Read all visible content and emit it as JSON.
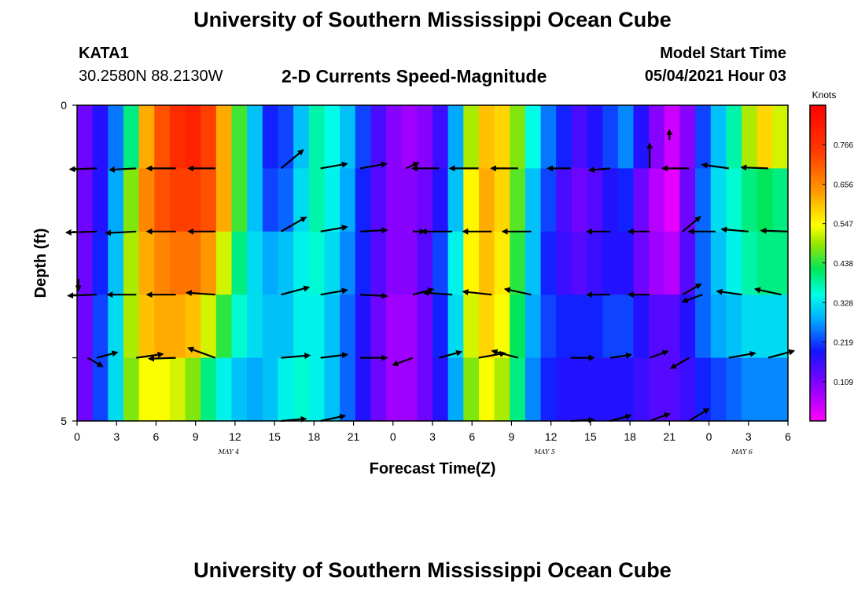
{
  "header": {
    "title_top": "University of Southern Mississippi Ocean Cube",
    "station": "KATA1",
    "coords": "30.2580N  88.2130W",
    "plot_title": "2-D Currents Speed-Magnitude",
    "model_label": "Model Start Time",
    "model_time": "05/04/2021 Hour 03",
    "title_bottom": "University of Southern Mississippi Ocean Cube"
  },
  "chart_data": {
    "type": "heatmap",
    "title": "2-D Currents Speed-Magnitude",
    "xlabel": "Forecast Time(Z)",
    "ylabel": "Depth (ft)",
    "ylim": [
      0,
      5
    ],
    "y_tick_labels": [
      "0",
      "5"
    ],
    "x_tick_labels": [
      "0",
      "3",
      "6",
      "9",
      "12",
      "15",
      "18",
      "21",
      "0",
      "3",
      "6",
      "9",
      "12",
      "15",
      "18",
      "21",
      "0",
      "3",
      "6"
    ],
    "date_labels": [
      {
        "label": "MAY 4",
        "hour": 12
      },
      {
        "label": "MAY 5",
        "hour": 36
      },
      {
        "label": "MAY 6",
        "hour": 51
      }
    ],
    "hours_range": [
      0,
      54
    ],
    "depth_bands": [
      0,
      1,
      2,
      3,
      4,
      5
    ],
    "speed_knots_by_band": [
      [
        0.12,
        0.18,
        0.25,
        0.4,
        0.62,
        0.72,
        0.78,
        0.8,
        0.74,
        0.62,
        0.45,
        0.3,
        0.2,
        0.22,
        0.3,
        0.38,
        0.35,
        0.3,
        0.22,
        0.15,
        0.1,
        0.08,
        0.1,
        0.16,
        0.28,
        0.5,
        0.6,
        0.58,
        0.48,
        0.35,
        0.25,
        0.2,
        0.15,
        0.18,
        0.22,
        0.26,
        0.18,
        0.1,
        0.04,
        0.1,
        0.22,
        0.3,
        0.38,
        0.5,
        0.58,
        0.52
      ],
      [
        0.12,
        0.18,
        0.28,
        0.48,
        0.66,
        0.72,
        0.74,
        0.74,
        0.72,
        0.62,
        0.45,
        0.3,
        0.22,
        0.24,
        0.32,
        0.38,
        0.34,
        0.28,
        0.2,
        0.14,
        0.1,
        0.1,
        0.12,
        0.18,
        0.3,
        0.55,
        0.62,
        0.58,
        0.46,
        0.3,
        0.22,
        0.15,
        0.12,
        0.14,
        0.18,
        0.2,
        0.12,
        0.06,
        0.02,
        0.12,
        0.24,
        0.32,
        0.36,
        0.4,
        0.42,
        0.4
      ],
      [
        0.12,
        0.2,
        0.3,
        0.5,
        0.62,
        0.66,
        0.68,
        0.68,
        0.64,
        0.52,
        0.4,
        0.32,
        0.28,
        0.3,
        0.34,
        0.36,
        0.32,
        0.26,
        0.2,
        0.14,
        0.1,
        0.1,
        0.14,
        0.22,
        0.34,
        0.55,
        0.6,
        0.56,
        0.44,
        0.3,
        0.2,
        0.16,
        0.14,
        0.16,
        0.18,
        0.18,
        0.12,
        0.08,
        0.06,
        0.14,
        0.24,
        0.3,
        0.34,
        0.38,
        0.4,
        0.4
      ],
      [
        0.12,
        0.22,
        0.32,
        0.5,
        0.6,
        0.62,
        0.62,
        0.6,
        0.52,
        0.44,
        0.36,
        0.32,
        0.3,
        0.3,
        0.34,
        0.34,
        0.3,
        0.24,
        0.18,
        0.12,
        0.08,
        0.08,
        0.12,
        0.2,
        0.32,
        0.52,
        0.58,
        0.54,
        0.42,
        0.28,
        0.22,
        0.2,
        0.2,
        0.2,
        0.22,
        0.22,
        0.18,
        0.14,
        0.14,
        0.18,
        0.24,
        0.28,
        0.3,
        0.32,
        0.32,
        0.32
      ],
      [
        0.12,
        0.22,
        0.32,
        0.48,
        0.54,
        0.54,
        0.52,
        0.48,
        0.4,
        0.34,
        0.3,
        0.28,
        0.3,
        0.34,
        0.36,
        0.34,
        0.3,
        0.24,
        0.18,
        0.12,
        0.08,
        0.08,
        0.12,
        0.18,
        0.28,
        0.48,
        0.54,
        0.5,
        0.4,
        0.26,
        0.2,
        0.18,
        0.18,
        0.18,
        0.18,
        0.18,
        0.16,
        0.14,
        0.14,
        0.16,
        0.2,
        0.22,
        0.24,
        0.26,
        0.26,
        0.26
      ]
    ],
    "colorbar": {
      "unit": "Knots",
      "range": [
        0,
        0.875
      ],
      "tick_values": [
        0.109,
        0.219,
        0.328,
        0.438,
        0.547,
        0.656,
        0.766
      ],
      "tick_labels": [
        "0.109",
        "0.219",
        "0.328",
        "0.438",
        "0.547",
        "0.656",
        "0.766"
      ]
    },
    "vector_rows": [
      [
        {
          "h": 1.5,
          "angle": -178,
          "mag": 0.7
        },
        {
          "h": 4.5,
          "angle": -177,
          "mag": 0.7
        },
        {
          "h": 7.5,
          "angle": -180,
          "mag": 0.75
        },
        {
          "h": 10.5,
          "angle": 180,
          "mag": 0.7
        },
        {
          "h": 15.5,
          "angle": 40,
          "mag": 0.75
        },
        {
          "h": 18.5,
          "angle": 10,
          "mag": 0.7
        },
        {
          "h": 21.5,
          "angle": 10,
          "mag": 0.7
        },
        {
          "h": 25,
          "angle": 25,
          "mag": 0.35
        },
        {
          "h": 27.5,
          "angle": -180,
          "mag": 0.7
        },
        {
          "h": 30.5,
          "angle": 180,
          "mag": 0.75
        },
        {
          "h": 33.5,
          "angle": 180,
          "mag": 0.7
        },
        {
          "h": 37.5,
          "angle": 180,
          "mag": 0.6
        },
        {
          "h": 40.5,
          "angle": -175,
          "mag": 0.55
        },
        {
          "h": 43.5,
          "angle": 90,
          "mag": 0.65
        },
        {
          "h": 46.5,
          "angle": 180,
          "mag": 0.7
        },
        {
          "h": 49.5,
          "angle": 172,
          "mag": 0.7
        },
        {
          "h": 52.5,
          "angle": 178,
          "mag": 0.7
        }
      ],
      [
        {
          "h": 1.5,
          "angle": -178,
          "mag": 0.8
        },
        {
          "h": 4.5,
          "angle": -177,
          "mag": 0.8
        },
        {
          "h": 7.5,
          "angle": -180,
          "mag": 0.75
        },
        {
          "h": 10.5,
          "angle": 180,
          "mag": 0.7
        },
        {
          "h": 15.5,
          "angle": 30,
          "mag": 0.75
        },
        {
          "h": 18.5,
          "angle": 10,
          "mag": 0.7
        },
        {
          "h": 21.5,
          "angle": 3,
          "mag": 0.7
        },
        {
          "h": 25.5,
          "angle": 0,
          "mag": 0.3
        },
        {
          "h": 28.5,
          "angle": 180,
          "mag": 0.8
        },
        {
          "h": 31.5,
          "angle": 180,
          "mag": 0.75
        },
        {
          "h": 34.5,
          "angle": 180,
          "mag": 0.75
        },
        {
          "h": 40.5,
          "angle": 180,
          "mag": 0.6
        },
        {
          "h": 43.5,
          "angle": 180,
          "mag": 0.55
        },
        {
          "h": 46,
          "angle": 40,
          "mag": 0.6
        },
        {
          "h": 48.5,
          "angle": 180,
          "mag": 0.7
        },
        {
          "h": 51,
          "angle": 175,
          "mag": 0.7
        },
        {
          "h": 54,
          "angle": 178,
          "mag": 0.7
        }
      ],
      [
        {
          "h": 1.5,
          "angle": -178,
          "mag": 0.75
        },
        {
          "h": 4.5,
          "angle": -180,
          "mag": 0.75
        },
        {
          "h": 7.5,
          "angle": -180,
          "mag": 0.75
        },
        {
          "h": 10.5,
          "angle": 176,
          "mag": 0.75
        },
        {
          "h": 15.5,
          "angle": 15,
          "mag": 0.75
        },
        {
          "h": 18.5,
          "angle": 10,
          "mag": 0.7
        },
        {
          "h": 21.5,
          "angle": -3,
          "mag": 0.7
        },
        {
          "h": 25.5,
          "angle": 15,
          "mag": 0.55
        },
        {
          "h": 28.5,
          "angle": 176,
          "mag": 0.75
        },
        {
          "h": 31.5,
          "angle": 174,
          "mag": 0.75
        },
        {
          "h": 34.5,
          "angle": 168,
          "mag": 0.7
        },
        {
          "h": 40.5,
          "angle": 180,
          "mag": 0.6
        },
        {
          "h": 43.5,
          "angle": 180,
          "mag": 0.55
        },
        {
          "h": 46,
          "angle": 30,
          "mag": 0.55
        },
        {
          "h": 47.5,
          "angle": -160,
          "mag": 0.55
        },
        {
          "h": 50.5,
          "angle": 172,
          "mag": 0.65
        },
        {
          "h": 53.5,
          "angle": 168,
          "mag": 0.7
        }
      ],
      [
        {
          "h": 1.5,
          "angle": 15,
          "mag": 0.55
        },
        {
          "h": 4.5,
          "angle": 8,
          "mag": 0.7
        },
        {
          "h": 7.5,
          "angle": -178,
          "mag": 0.7
        },
        {
          "h": 10.5,
          "angle": 160,
          "mag": 0.75
        },
        {
          "h": 15.5,
          "angle": 5,
          "mag": 0.75
        },
        {
          "h": 18.5,
          "angle": 7,
          "mag": 0.7
        },
        {
          "h": 21.5,
          "angle": 0,
          "mag": 0.7
        },
        {
          "h": 25.5,
          "angle": -160,
          "mag": 0.55
        },
        {
          "h": 27.5,
          "angle": 15,
          "mag": 0.6
        },
        {
          "h": 30.5,
          "angle": 10,
          "mag": 0.7
        },
        {
          "h": 33.5,
          "angle": 165,
          "mag": 0.7
        },
        {
          "h": 37.5,
          "angle": 0,
          "mag": 0.6
        },
        {
          "h": 40.5,
          "angle": 8,
          "mag": 0.55
        },
        {
          "h": 43.5,
          "angle": 20,
          "mag": 0.5
        },
        {
          "h": 46.5,
          "angle": -150,
          "mag": 0.55
        },
        {
          "h": 49.5,
          "angle": 10,
          "mag": 0.7
        },
        {
          "h": 52.5,
          "angle": 15,
          "mag": 0.7
        }
      ],
      [
        {
          "h": 15.5,
          "angle": 5,
          "mag": 0.65
        },
        {
          "h": 18.5,
          "angle": 12,
          "mag": 0.65
        },
        {
          "h": 37.5,
          "angle": 3,
          "mag": 0.6
        },
        {
          "h": 40.5,
          "angle": 15,
          "mag": 0.55
        },
        {
          "h": 43.5,
          "angle": 20,
          "mag": 0.55
        },
        {
          "h": 46.5,
          "angle": 32,
          "mag": 0.6
        }
      ]
    ],
    "edge_arrows": [
      {
        "h": 0.1,
        "depth": 2.75,
        "angle": -90,
        "mag": 0.3
      },
      {
        "h": 0.8,
        "depth": 4.0,
        "angle": -30,
        "mag": 0.45
      },
      {
        "h": 45,
        "depth": 0.55,
        "angle": 90,
        "mag": 0.25
      }
    ]
  }
}
